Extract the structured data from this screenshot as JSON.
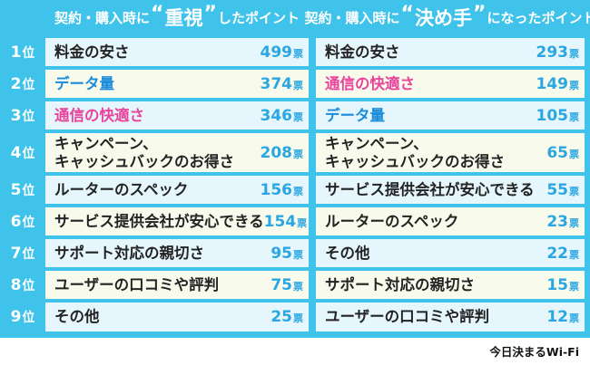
{
  "header": {
    "left": {
      "prefix": "契約・購入時に",
      "open_quote": "“",
      "keyword": "重視",
      "close_quote": "”",
      "suffix": "したポイント"
    },
    "right": {
      "prefix": "契約・購入時に",
      "open_quote": "“",
      "keyword": "決め手",
      "close_quote": "”",
      "suffix": "になったポイント"
    }
  },
  "vote_unit": "票",
  "rank_unit": "位",
  "colors": {
    "board": "#3fc3ea",
    "votes": "#2aa7e2",
    "pink": "#e8449b",
    "blue": "#1a8bd9"
  },
  "rows": [
    {
      "rank": "1",
      "left": {
        "label": "料金の安さ",
        "votes": "499"
      },
      "right": {
        "label": "料金の安さ",
        "votes": "293"
      }
    },
    {
      "rank": "2",
      "left": {
        "label": "データ量",
        "votes": "374",
        "color": "blue"
      },
      "right": {
        "label": "通信の快適さ",
        "votes": "149",
        "color": "pink"
      }
    },
    {
      "rank": "3",
      "left": {
        "label": "通信の快適さ",
        "votes": "346",
        "color": "pink"
      },
      "right": {
        "label": "データ量",
        "votes": "105",
        "color": "blue"
      }
    },
    {
      "rank": "4",
      "left": {
        "label": "キャンペーン、\nキャッシュバックのお得さ",
        "votes": "208"
      },
      "right": {
        "label": "キャンペーン、\nキャッシュバックのお得さ",
        "votes": "65"
      }
    },
    {
      "rank": "5",
      "left": {
        "label": "ルーターのスペック",
        "votes": "156"
      },
      "right": {
        "label": "サービス提供会社が安心できる",
        "votes": "55"
      }
    },
    {
      "rank": "6",
      "left": {
        "label": "サービス提供会社が安心できる",
        "votes": "154"
      },
      "right": {
        "label": "ルーターのスペック",
        "votes": "23"
      }
    },
    {
      "rank": "7",
      "left": {
        "label": "サポート対応の親切さ",
        "votes": "95"
      },
      "right": {
        "label": "その他",
        "votes": "22"
      }
    },
    {
      "rank": "8",
      "left": {
        "label": "ユーザーの口コミや評判",
        "votes": "75"
      },
      "right": {
        "label": "サポート対応の親切さ",
        "votes": "15"
      }
    },
    {
      "rank": "9",
      "left": {
        "label": "その他",
        "votes": "25"
      },
      "right": {
        "label": "ユーザーの口コミや評判",
        "votes": "12"
      }
    }
  ],
  "brand": "今日決まるWi-Fi"
}
